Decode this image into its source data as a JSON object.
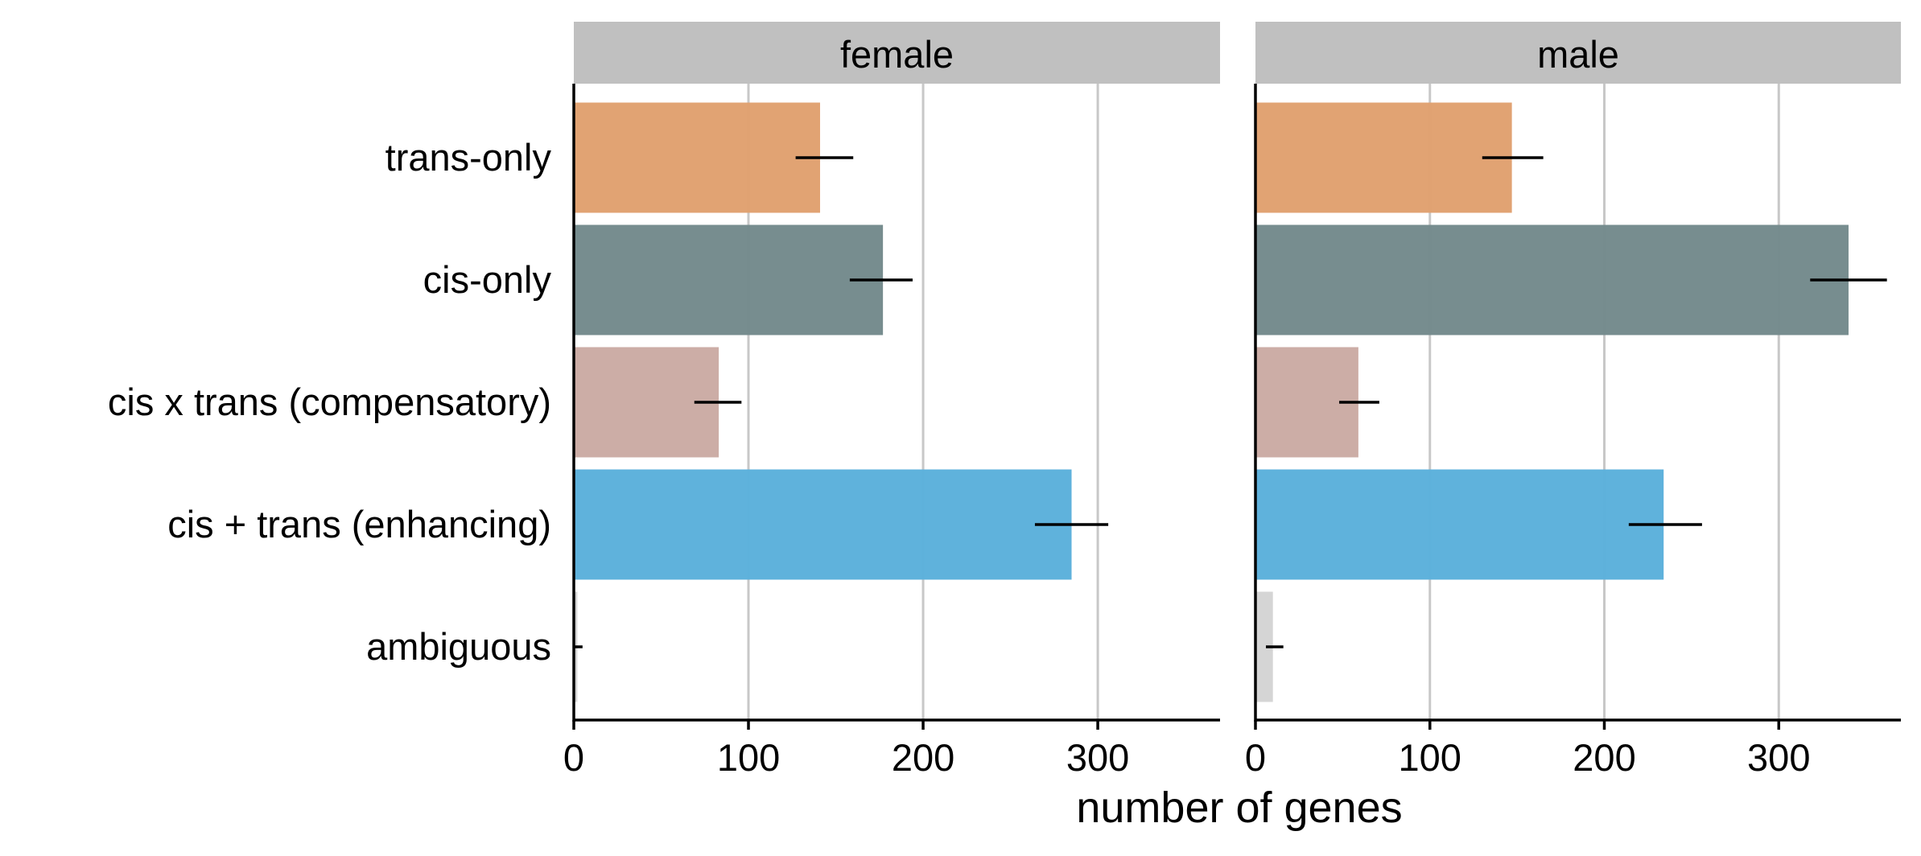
{
  "chart_data": {
    "type": "bar",
    "orientation": "horizontal",
    "xlabel": "number of genes",
    "ylabel": "",
    "xlim": [
      0,
      370
    ],
    "xticks": [
      0,
      100,
      200,
      300
    ],
    "grid": "vertical",
    "categories": [
      "trans-only",
      "cis-only",
      "cis x trans (compensatory)",
      "cis + trans (enhancing)",
      "ambiguous"
    ],
    "category_colors": [
      "#e0a06e",
      "#73898b",
      "#caaaa3",
      "#5aafdb",
      "#d4d4d4"
    ],
    "facets": [
      {
        "label": "female",
        "values": [
          141,
          177,
          83,
          285,
          2
        ],
        "error_low": [
          127,
          158,
          69,
          264,
          0
        ],
        "error_high": [
          160,
          194,
          96,
          306,
          5
        ]
      },
      {
        "label": "male",
        "values": [
          147,
          340,
          59,
          234,
          10
        ],
        "error_low": [
          130,
          318,
          48,
          214,
          6
        ],
        "error_high": [
          165,
          362,
          71,
          256,
          16
        ]
      }
    ]
  }
}
